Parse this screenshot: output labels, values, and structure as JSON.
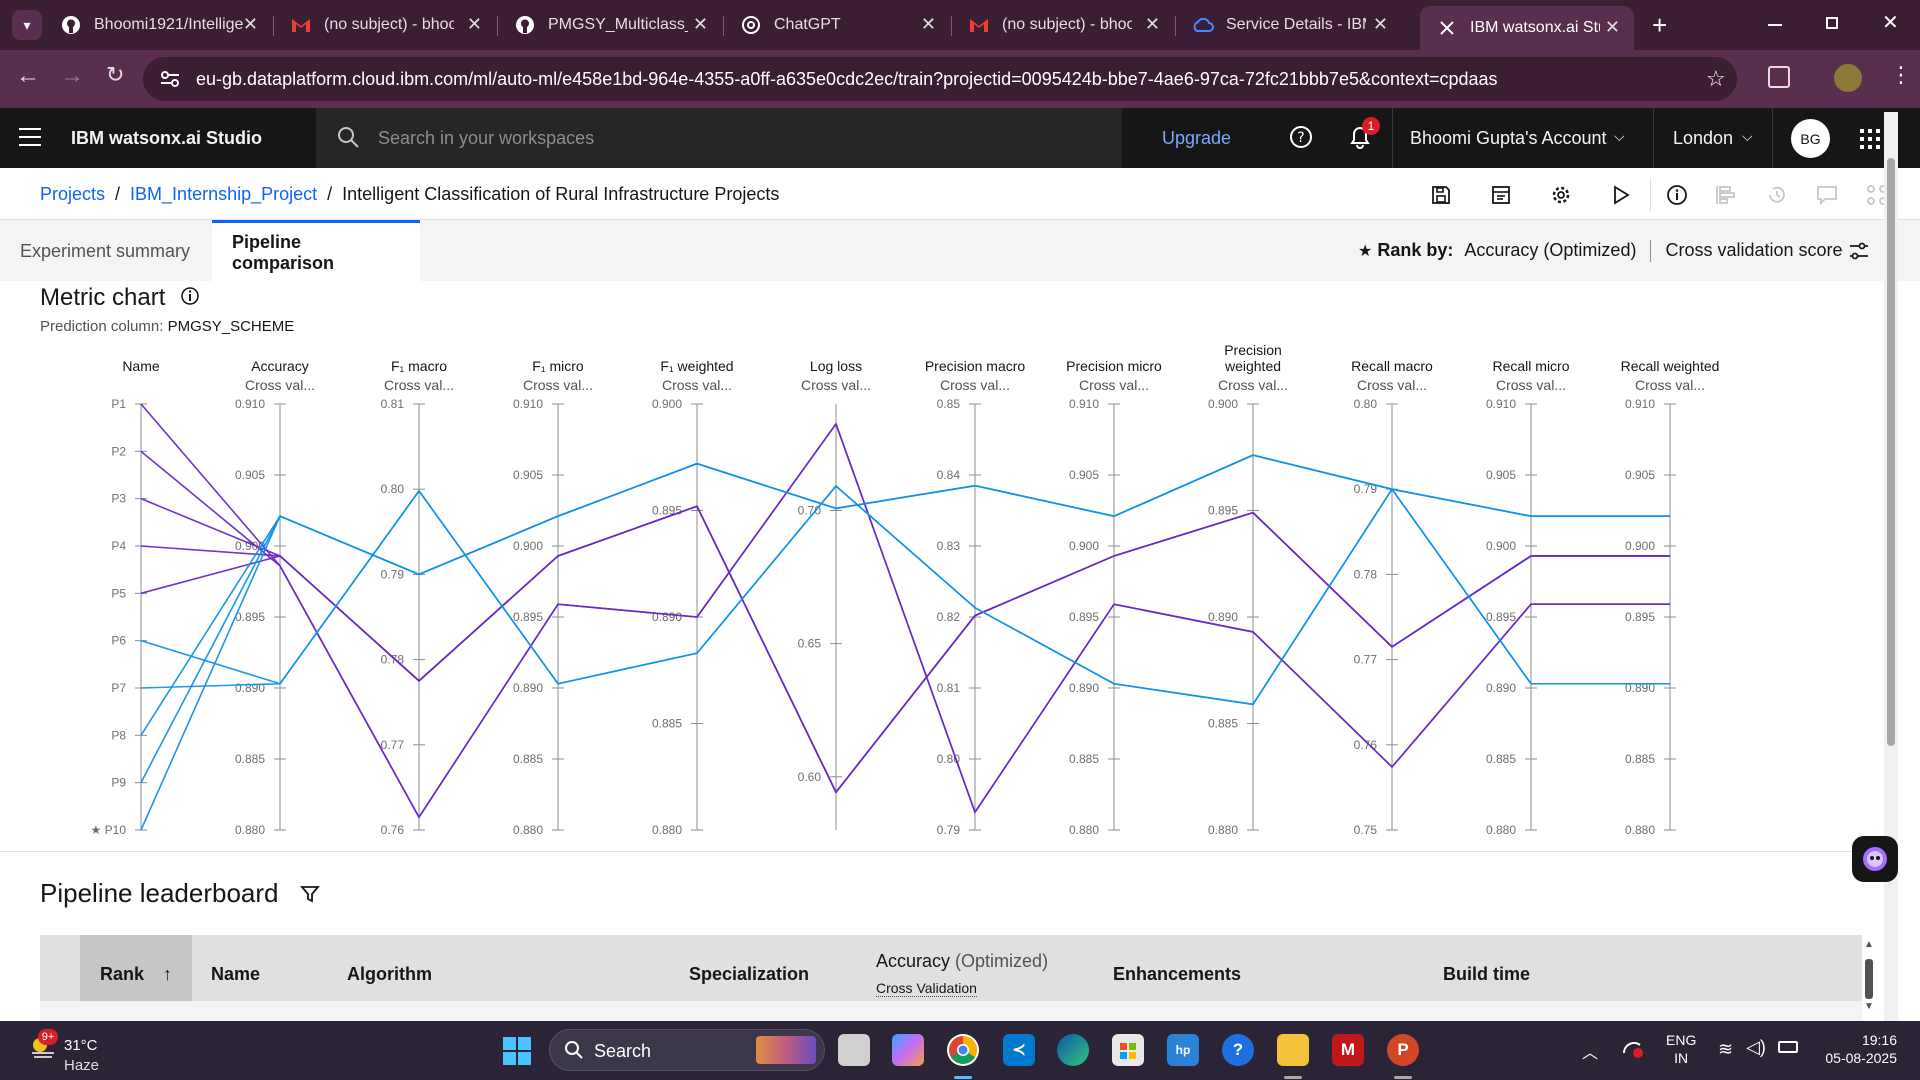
{
  "browser": {
    "tabs": [
      {
        "title": "Bhoomi1921/Intellige",
        "icon": "github-icon"
      },
      {
        "title": "(no subject) - bhoom",
        "icon": "gmail-icon"
      },
      {
        "title": "PMGSY_Multiclass_M",
        "icon": "github-icon"
      },
      {
        "title": "ChatGPT",
        "icon": "chatgpt-icon"
      },
      {
        "title": "(no subject) - bhoom",
        "icon": "gmail-icon"
      },
      {
        "title": "Service Details - IBM",
        "icon": "ibm-cloud-icon"
      },
      {
        "title": "IBM watsonx.ai Studi",
        "icon": "watsonx-icon"
      }
    ],
    "url": "eu-gb.dataplatform.cloud.ibm.com/ml/auto-ml/e458e1bd-964e-4355-a0ff-a635e0cdc2ec/train?projectid=0095424b-bbe7-4ae6-97ca-72fc21bbb7e5&context=cpdaas"
  },
  "header": {
    "brand": "IBM watsonx.ai Studio",
    "search_placeholder": "Search in your workspaces",
    "upgrade": "Upgrade",
    "notification_count": "1",
    "account": "Bhoomi Gupta's Account",
    "region": "London",
    "avatar_initials": "BG"
  },
  "breadcrumb": {
    "projects": "Projects",
    "project": "IBM_Internship_Project",
    "current": "Intelligent Classification of Rural Infrastructure Projects",
    "separator": "/"
  },
  "tabs": {
    "experiment_summary": "Experiment summary",
    "pipeline_comparison": "Pipeline comparison"
  },
  "rank": {
    "label": "Rank by:",
    "metric": "Accuracy (Optimized)",
    "score": "Cross validation score"
  },
  "metric_chart": {
    "title": "Metric chart",
    "prediction_label": "Prediction column:",
    "prediction_value": "PMGSY_SCHEME"
  },
  "chart_data": {
    "type": "parallel-coordinates",
    "axes": [
      {
        "name": "Name",
        "sub": "",
        "ticks": [
          "P1",
          "P2",
          "P3",
          "P4",
          "P5",
          "P6",
          "P7",
          "P8",
          "P9",
          "★ P10"
        ]
      },
      {
        "name": "Accuracy",
        "sub": "Cross val...",
        "min": 0.88,
        "max": 0.91,
        "ticks": [
          "0.910",
          "0.905",
          "0.900",
          "0.895",
          "0.890",
          "0.885",
          "0.880"
        ]
      },
      {
        "name": "F₁ macro",
        "sub": "Cross val...",
        "min": 0.76,
        "max": 0.81,
        "ticks": [
          "0.81",
          "0.80",
          "0.79",
          "0.78",
          "0.77",
          "0.76"
        ]
      },
      {
        "name": "F₁ micro",
        "sub": "Cross val...",
        "min": 0.88,
        "max": 0.91,
        "ticks": [
          "0.910",
          "0.905",
          "0.900",
          "0.895",
          "0.890",
          "0.885",
          "0.880"
        ]
      },
      {
        "name": "F₁ weighted",
        "sub": "Cross val...",
        "min": 0.88,
        "max": 0.9,
        "ticks": [
          "0.900",
          "0.895",
          "0.890",
          "0.885",
          "0.880"
        ]
      },
      {
        "name": "Log loss",
        "sub": "Cross val...",
        "min": 0.58,
        "max": 0.74,
        "ticks": [
          "0.70",
          "0.65",
          "0.60"
        ]
      },
      {
        "name": "Precision macro",
        "sub": "Cross val...",
        "min": 0.79,
        "max": 0.85,
        "ticks": [
          "0.85",
          "0.84",
          "0.83",
          "0.82",
          "0.81",
          "0.80",
          "0.79"
        ]
      },
      {
        "name": "Precision micro",
        "sub": "Cross val...",
        "min": 0.88,
        "max": 0.91,
        "ticks": [
          "0.910",
          "0.905",
          "0.900",
          "0.895",
          "0.890",
          "0.885",
          "0.880"
        ]
      },
      {
        "name": "Precision weighted",
        "sub": "Cross val...",
        "min": 0.88,
        "max": 0.9,
        "ticks": [
          "0.900",
          "0.895",
          "0.890",
          "0.885",
          "0.880"
        ]
      },
      {
        "name": "Recall macro",
        "sub": "Cross val...",
        "min": 0.75,
        "max": 0.8,
        "ticks": [
          "0.80",
          "0.79",
          "0.78",
          "0.77",
          "0.76",
          "0.75"
        ]
      },
      {
        "name": "Recall micro",
        "sub": "Cross val...",
        "min": 0.88,
        "max": 0.91,
        "ticks": [
          "0.910",
          "0.905",
          "0.900",
          "0.895",
          "0.890",
          "0.885",
          "0.880"
        ]
      },
      {
        "name": "Recall weighted",
        "sub": "Cross val...",
        "min": 0.88,
        "max": 0.91,
        "ticks": [
          "0.910",
          "0.905",
          "0.900",
          "0.895",
          "0.890",
          "0.885",
          "0.880"
        ]
      }
    ],
    "colors": {
      "purple": "#6929c4",
      "blue": "#1192e8",
      "axis": "#8d8d8d"
    },
    "series": [
      {
        "pipeline": "P1",
        "color": "purple",
        "values": [
          0.8986,
          0.7615,
          0.8959,
          0.89,
          0.7325,
          0.7925,
          0.8959,
          0.8893,
          0.7574,
          0.8959,
          0.8959
        ]
      },
      {
        "pipeline": "P2",
        "color": "purple",
        "values": [
          0.8986,
          0.7615,
          0.8959,
          0.89,
          0.7325,
          0.7925,
          0.8959,
          0.8893,
          0.7574,
          0.8959,
          0.8959
        ]
      },
      {
        "pipeline": "P3",
        "color": "purple",
        "values": [
          0.8993,
          0.7775,
          0.8993,
          0.8952,
          0.5942,
          0.8202,
          0.8993,
          0.8949,
          0.7715,
          0.8993,
          0.8993
        ]
      },
      {
        "pipeline": "P4",
        "color": "purple",
        "values": [
          0.8993,
          0.7775,
          0.8993,
          0.8952,
          0.5942,
          0.8202,
          0.8993,
          0.8949,
          0.7715,
          0.8993,
          0.8993
        ]
      },
      {
        "pipeline": "P5",
        "color": "purple",
        "values": [
          0.8993,
          0.7775,
          0.8993,
          0.8952,
          0.5942,
          0.8202,
          0.8993,
          0.8949,
          0.7715,
          0.8993,
          0.8993
        ]
      },
      {
        "pipeline": "P6",
        "color": "blue",
        "values": [
          0.8903,
          0.7998,
          0.8903,
          0.8883,
          0.7092,
          0.8213,
          0.8903,
          0.8859,
          0.79,
          0.8903,
          0.8903
        ]
      },
      {
        "pipeline": "P7",
        "color": "blue",
        "values": [
          0.8903,
          0.7998,
          0.8903,
          0.8883,
          0.7092,
          0.8213,
          0.8903,
          0.8859,
          0.79,
          0.8903,
          0.8903
        ]
      },
      {
        "pipeline": "P8",
        "color": "blue",
        "values": [
          0.9021,
          0.79,
          0.9021,
          0.8972,
          0.7008,
          0.8385,
          0.9021,
          0.8976,
          0.79,
          0.9021,
          0.9021
        ]
      },
      {
        "pipeline": "P9",
        "color": "blue",
        "values": [
          0.9021,
          0.79,
          0.9021,
          0.8972,
          0.7008,
          0.8385,
          0.9021,
          0.8976,
          0.79,
          0.9021,
          0.9021
        ]
      },
      {
        "pipeline": "P10",
        "color": "blue",
        "values": [
          0.9021,
          0.79,
          0.9021,
          0.8972,
          0.7008,
          0.8385,
          0.9021,
          0.8976,
          0.79,
          0.9021,
          0.9021
        ]
      }
    ]
  },
  "leaderboard": {
    "title": "Pipeline leaderboard",
    "columns": {
      "rank": "Rank",
      "name": "Name",
      "algorithm": "Algorithm",
      "specialization": "Specialization",
      "accuracy_main": "Accuracy",
      "accuracy_opt": "(Optimized)",
      "accuracy_sub": "Cross Validation",
      "enhancements": "Enhancements",
      "build_time": "Build time"
    }
  },
  "taskbar": {
    "weather_temp": "31°C",
    "weather_cond": "Haze",
    "weather_badge": "9+",
    "search": "Search",
    "lang_top": "ENG",
    "lang_bottom": "IN",
    "time": "19:16",
    "date": "05-08-2025"
  }
}
